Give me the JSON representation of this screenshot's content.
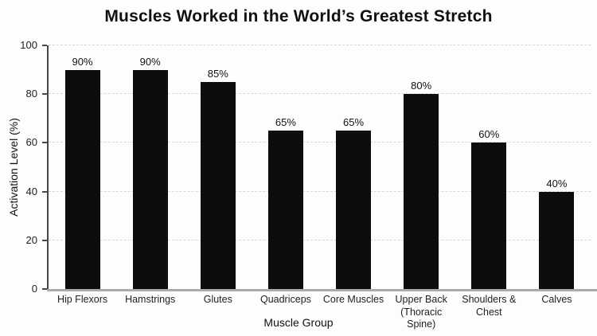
{
  "chart_data": {
    "type": "bar",
    "title": "Muscles Worked in the World’s Greatest Stretch",
    "xlabel": "Muscle Group",
    "ylabel": "Activation Level (%)",
    "categories": [
      "Hip Flexors",
      "Hamstrings",
      "Glutes",
      "Quadriceps",
      "Core Muscles",
      "Upper Back\n(Thoracic Spine)",
      "Shoulders &\nChest",
      "Calves"
    ],
    "values": [
      90,
      90,
      85,
      65,
      65,
      80,
      60,
      40
    ],
    "data_labels": [
      "90%",
      "90%",
      "85%",
      "65%",
      "65%",
      "80%",
      "60%",
      "40%"
    ],
    "yticks": [
      0,
      20,
      40,
      60,
      80,
      100
    ],
    "ylim": [
      0,
      100
    ],
    "grid": "horizontal dashed lines at y ticks",
    "legend": "none",
    "bar_color": "#0d0d0d",
    "background_color": "#fdfdfd",
    "gridline_color": "#d8d8d8",
    "y_axis_line_color": "#474747",
    "x_axis_line_color": "#ababab"
  }
}
